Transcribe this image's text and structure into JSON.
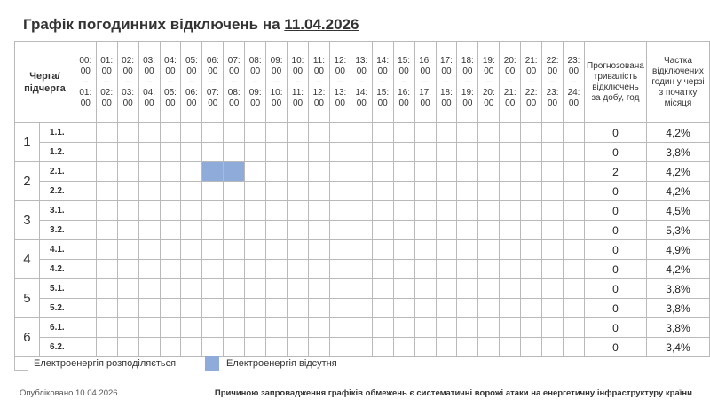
{
  "title": {
    "prefix": "Графік погодинних відключень на",
    "date": "11.04.2026"
  },
  "table": {
    "queue_header": "Черга/ підчерга",
    "predicted_header": "Прогнозована тривалість відключень за добу, год",
    "share_header": "Частка відключених годин у черзі з початку місяця",
    "hours": [
      {
        "start": "00:00",
        "end": "01:00"
      },
      {
        "start": "01:00",
        "end": "02:00"
      },
      {
        "start": "02:00",
        "end": "03:00"
      },
      {
        "start": "03:00",
        "end": "04:00"
      },
      {
        "start": "04:00",
        "end": "05:00"
      },
      {
        "start": "05:00",
        "end": "06:00"
      },
      {
        "start": "06:00",
        "end": "07:00"
      },
      {
        "start": "07:00",
        "end": "08:00"
      },
      {
        "start": "08:00",
        "end": "09:00"
      },
      {
        "start": "09:00",
        "end": "10:00"
      },
      {
        "start": "10:00",
        "end": "11:00"
      },
      {
        "start": "11:00",
        "end": "12:00"
      },
      {
        "start": "12:00",
        "end": "13:00"
      },
      {
        "start": "13:00",
        "end": "14:00"
      },
      {
        "start": "14:00",
        "end": "15:00"
      },
      {
        "start": "15:00",
        "end": "16:00"
      },
      {
        "start": "16:00",
        "end": "17:00"
      },
      {
        "start": "17:00",
        "end": "18:00"
      },
      {
        "start": "18:00",
        "end": "19:00"
      },
      {
        "start": "19:00",
        "end": "20:00"
      },
      {
        "start": "20:00",
        "end": "21:00"
      },
      {
        "start": "21:00",
        "end": "22:00"
      },
      {
        "start": "22:00",
        "end": "23:00"
      },
      {
        "start": "23:00",
        "end": "24:00"
      }
    ],
    "groups": [
      {
        "label": "1",
        "subqueues": [
          {
            "label": "1.1.",
            "off_hours": [],
            "predicted": "0",
            "share": "4,2%"
          },
          {
            "label": "1.2.",
            "off_hours": [],
            "predicted": "0",
            "share": "3,8%"
          }
        ]
      },
      {
        "label": "2",
        "subqueues": [
          {
            "label": "2.1.",
            "off_hours": [
              6,
              7
            ],
            "predicted": "2",
            "share": "4,2%"
          },
          {
            "label": "2.2.",
            "off_hours": [],
            "predicted": "0",
            "share": "4,2%"
          }
        ]
      },
      {
        "label": "3",
        "subqueues": [
          {
            "label": "3.1.",
            "off_hours": [],
            "predicted": "0",
            "share": "4,5%"
          },
          {
            "label": "3.2.",
            "off_hours": [],
            "predicted": "0",
            "share": "5,3%"
          }
        ]
      },
      {
        "label": "4",
        "subqueues": [
          {
            "label": "4.1.",
            "off_hours": [],
            "predicted": "0",
            "share": "4,9%"
          },
          {
            "label": "4.2.",
            "off_hours": [],
            "predicted": "0",
            "share": "4,2%"
          }
        ]
      },
      {
        "label": "5",
        "subqueues": [
          {
            "label": "5.1.",
            "off_hours": [],
            "predicted": "0",
            "share": "3,8%"
          },
          {
            "label": "5.2.",
            "off_hours": [],
            "predicted": "0",
            "share": "3,8%"
          }
        ]
      },
      {
        "label": "6",
        "subqueues": [
          {
            "label": "6.1.",
            "off_hours": [],
            "predicted": "0",
            "share": "3,8%"
          },
          {
            "label": "6.2.",
            "off_hours": [],
            "predicted": "0",
            "share": "3,4%"
          }
        ]
      }
    ]
  },
  "legend": {
    "on_label": "Електроенергія розподіляється",
    "off_label": "Електроенергія відсутня",
    "on_color": "#ffffff",
    "off_color": "#8fabd9"
  },
  "footer": {
    "published": "Опубліковано 10.04.2026",
    "reason": "Причиною запровадження графіків обмежень є систематичні ворожі атаки на енергетичну інфраструктуру країни"
  }
}
